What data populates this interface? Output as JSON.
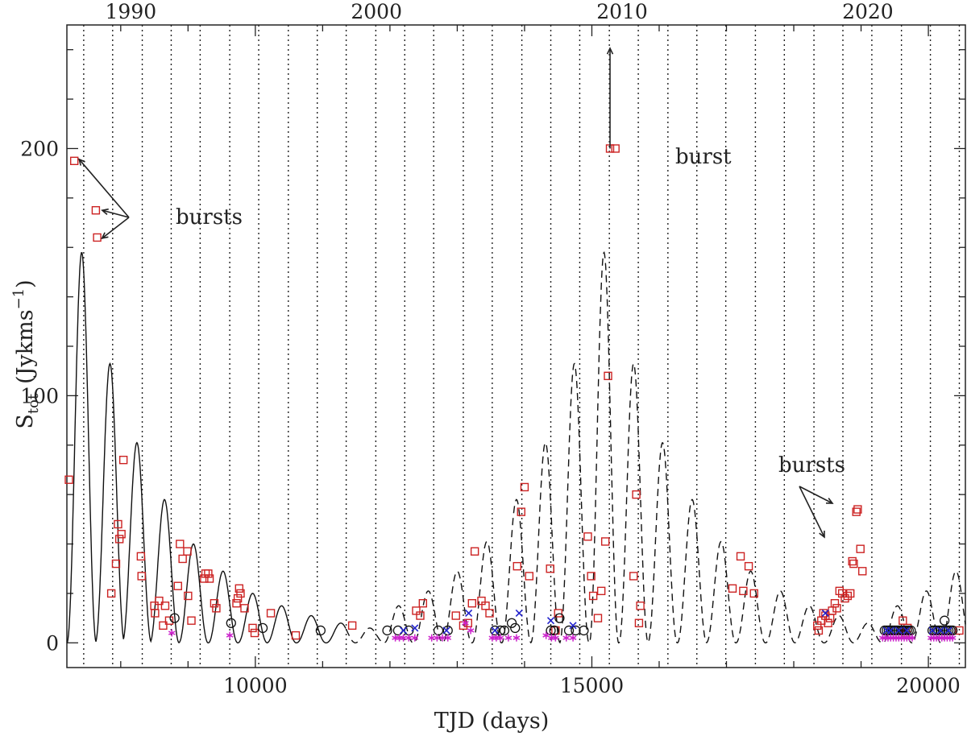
{
  "chart_data": {
    "type": "scatter",
    "title": "",
    "xlabel": "TJD (days)",
    "ylabel": "S",
    "ylabel_sub": "tot",
    "ylabel_units": "(Jykms",
    "ylabel_units_exp": "−1",
    "ylabel_units_close": ")",
    "xlim": [
      7200,
      20550
    ],
    "ylim": [
      -10,
      250
    ],
    "xticks": [
      10000,
      15000,
      20000
    ],
    "yticks": [
      0,
      100,
      200
    ],
    "top_axis_labels": [
      {
        "x": 8150,
        "label": "1990"
      },
      {
        "x": 11800,
        "label": "2000"
      },
      {
        "x": 15450,
        "label": "2010"
      },
      {
        "x": 19100,
        "label": "2020"
      }
    ],
    "vertical_dotted_lines": [
      7450,
      7880,
      8320,
      8750,
      9180,
      9620,
      10050,
      10490,
      10920,
      11350,
      11790,
      12220,
      12650,
      13090,
      13520,
      13960,
      14390,
      14820,
      15260,
      15690,
      16130,
      16560,
      16990,
      17430,
      17860,
      18300,
      18730,
      19160,
      19600,
      20030,
      20460
    ],
    "grid": false,
    "annotations": [
      {
        "text": "bursts"
      },
      {
        "text": "burst"
      },
      {
        "text": "bursts"
      }
    ],
    "series": [
      {
        "marker": "square",
        "color": "#cc2222",
        "points": [
          [
            7230,
            66
          ],
          [
            7310,
            195
          ],
          [
            7630,
            175
          ],
          [
            7650,
            164
          ],
          [
            7860,
            20
          ],
          [
            7930,
            32
          ],
          [
            7960,
            48
          ],
          [
            7980,
            42
          ],
          [
            8010,
            44
          ],
          [
            8040,
            74
          ],
          [
            8300,
            35
          ],
          [
            8310,
            27
          ],
          [
            8500,
            15
          ],
          [
            8510,
            12
          ],
          [
            8570,
            17
          ],
          [
            8630,
            7
          ],
          [
            8660,
            15
          ],
          [
            8720,
            9
          ],
          [
            8850,
            23
          ],
          [
            8880,
            40
          ],
          [
            8920,
            34
          ],
          [
            8990,
            37
          ],
          [
            9000,
            19
          ],
          [
            9050,
            9
          ],
          [
            9240,
            26
          ],
          [
            9260,
            28
          ],
          [
            9300,
            28
          ],
          [
            9320,
            26
          ],
          [
            9390,
            16
          ],
          [
            9420,
            14
          ],
          [
            9720,
            16
          ],
          [
            9740,
            18
          ],
          [
            9760,
            22
          ],
          [
            9780,
            20
          ],
          [
            9840,
            14
          ],
          [
            9960,
            6
          ],
          [
            9990,
            4
          ],
          [
            10230,
            12
          ],
          [
            10600,
            3
          ],
          [
            11440,
            7
          ],
          [
            12390,
            13
          ],
          [
            12450,
            11
          ],
          [
            12490,
            16
          ],
          [
            12980,
            11
          ],
          [
            13090,
            7
          ],
          [
            13160,
            8
          ],
          [
            13220,
            16
          ],
          [
            13260,
            37
          ],
          [
            13360,
            17
          ],
          [
            13420,
            15
          ],
          [
            13480,
            12
          ],
          [
            13890,
            31
          ],
          [
            13950,
            53
          ],
          [
            14000,
            63
          ],
          [
            14070,
            27
          ],
          [
            14380,
            30
          ],
          [
            14460,
            5
          ],
          [
            14500,
            12
          ],
          [
            14940,
            43
          ],
          [
            14990,
            27
          ],
          [
            15020,
            19
          ],
          [
            15090,
            10
          ],
          [
            15140,
            21
          ],
          [
            15200,
            41
          ],
          [
            15240,
            108
          ],
          [
            15270,
            200
          ],
          [
            15350,
            200
          ],
          [
            15620,
            27
          ],
          [
            15660,
            60
          ],
          [
            15700,
            8
          ],
          [
            15720,
            15
          ],
          [
            17090,
            22
          ],
          [
            17210,
            35
          ],
          [
            17250,
            21
          ],
          [
            17330,
            31
          ],
          [
            17410,
            20
          ],
          [
            18350,
            7
          ],
          [
            18370,
            5
          ],
          [
            18410,
            9
          ],
          [
            18440,
            12
          ],
          [
            18470,
            11
          ],
          [
            18510,
            8
          ],
          [
            18540,
            10
          ],
          [
            18570,
            13
          ],
          [
            18610,
            16
          ],
          [
            18640,
            14
          ],
          [
            18680,
            21
          ],
          [
            18720,
            20
          ],
          [
            18760,
            18
          ],
          [
            18800,
            19
          ],
          [
            18840,
            20
          ],
          [
            18870,
            33
          ],
          [
            18890,
            32
          ],
          [
            18930,
            53
          ],
          [
            18950,
            54
          ],
          [
            18990,
            38
          ],
          [
            19020,
            29
          ],
          [
            19620,
            9
          ],
          [
            19660,
            4
          ],
          [
            19690,
            6
          ],
          [
            20460,
            5
          ]
        ]
      },
      {
        "marker": "circle",
        "color": "#111111",
        "points": [
          [
            8800,
            10
          ],
          [
            9640,
            8
          ],
          [
            10110,
            6
          ],
          [
            10970,
            5
          ],
          [
            11960,
            5
          ],
          [
            12120,
            5
          ],
          [
            12280,
            5
          ],
          [
            12720,
            5
          ],
          [
            12860,
            5
          ],
          [
            13560,
            5
          ],
          [
            13640,
            5
          ],
          [
            13700,
            5
          ],
          [
            13810,
            8
          ],
          [
            13860,
            6
          ],
          [
            14390,
            5
          ],
          [
            14440,
            5
          ],
          [
            14520,
            10
          ],
          [
            14660,
            5
          ],
          [
            14760,
            5
          ],
          [
            14880,
            5
          ],
          [
            19350,
            5
          ],
          [
            19380,
            5
          ],
          [
            19410,
            5
          ],
          [
            19440,
            5
          ],
          [
            19470,
            5
          ],
          [
            19500,
            5
          ],
          [
            19530,
            5
          ],
          [
            19560,
            5
          ],
          [
            19590,
            5
          ],
          [
            19620,
            5
          ],
          [
            19650,
            5
          ],
          [
            19680,
            5
          ],
          [
            19710,
            5
          ],
          [
            19740,
            5
          ],
          [
            20060,
            5
          ],
          [
            20090,
            5
          ],
          [
            20120,
            5
          ],
          [
            20150,
            5
          ],
          [
            20180,
            5
          ],
          [
            20210,
            5
          ],
          [
            20240,
            9
          ],
          [
            20270,
            5
          ],
          [
            20300,
            5
          ],
          [
            20330,
            5
          ],
          [
            20360,
            5
          ]
        ]
      },
      {
        "marker": "x",
        "color": "#2222cc",
        "points": [
          [
            12200,
            5
          ],
          [
            12370,
            6
          ],
          [
            12840,
            5
          ],
          [
            13170,
            12
          ],
          [
            13560,
            5
          ],
          [
            13920,
            12
          ],
          [
            14390,
            9
          ],
          [
            14720,
            7
          ],
          [
            18470,
            12
          ],
          [
            19380,
            5
          ],
          [
            19440,
            5
          ],
          [
            19560,
            5
          ],
          [
            19680,
            5
          ],
          [
            20060,
            5
          ],
          [
            20180,
            5
          ],
          [
            20300,
            5
          ]
        ]
      },
      {
        "marker": "star",
        "color": "#cc22cc",
        "points": [
          [
            8760,
            4
          ],
          [
            9620,
            3
          ],
          [
            12080,
            2
          ],
          [
            12140,
            2
          ],
          [
            12200,
            2
          ],
          [
            12280,
            2
          ],
          [
            12370,
            2
          ],
          [
            12620,
            2
          ],
          [
            12700,
            2
          ],
          [
            12780,
            2
          ],
          [
            12860,
            2
          ],
          [
            13120,
            8
          ],
          [
            13200,
            5
          ],
          [
            13520,
            2
          ],
          [
            13580,
            2
          ],
          [
            13640,
            2
          ],
          [
            13760,
            2
          ],
          [
            13880,
            2
          ],
          [
            14320,
            3
          ],
          [
            14400,
            2
          ],
          [
            14460,
            2
          ],
          [
            14620,
            2
          ],
          [
            14720,
            2
          ],
          [
            19320,
            2
          ],
          [
            19360,
            2
          ],
          [
            19400,
            2
          ],
          [
            19440,
            2
          ],
          [
            19480,
            2
          ],
          [
            19520,
            2
          ],
          [
            19560,
            2
          ],
          [
            19600,
            2
          ],
          [
            19640,
            2
          ],
          [
            19680,
            2
          ],
          [
            19720,
            2
          ],
          [
            19760,
            2
          ],
          [
            20040,
            2
          ],
          [
            20080,
            2
          ],
          [
            20120,
            2
          ],
          [
            20160,
            2
          ],
          [
            20200,
            2
          ],
          [
            20240,
            2
          ],
          [
            20280,
            2
          ],
          [
            20320,
            2
          ],
          [
            20360,
            2
          ]
        ]
      }
    ],
    "model_curve": {
      "solid_range": [
        7200,
        11350
      ],
      "dashed_range": [
        11350,
        20550
      ],
      "period_days": 440,
      "peaks": [
        [
          7420,
          158
        ],
        [
          7840,
          113
        ],
        [
          8240,
          81
        ],
        [
          8650,
          58
        ],
        [
          9080,
          40
        ],
        [
          9520,
          29
        ],
        [
          9960,
          20
        ],
        [
          10390,
          15
        ],
        [
          10830,
          11
        ],
        [
          11270,
          8
        ],
        [
          11700,
          6
        ],
        [
          12130,
          15
        ],
        [
          12570,
          21
        ],
        [
          13000,
          29
        ],
        [
          13440,
          41
        ],
        [
          13880,
          58
        ],
        [
          14310,
          81
        ],
        [
          14740,
          113
        ],
        [
          15180,
          158
        ],
        [
          15620,
          113
        ],
        [
          16050,
          81
        ],
        [
          16490,
          58
        ],
        [
          16920,
          41
        ],
        [
          17360,
          29
        ],
        [
          17800,
          21
        ],
        [
          18230,
          15
        ],
        [
          18670,
          11
        ],
        [
          19100,
          8
        ],
        [
          19540,
          15
        ],
        [
          19970,
          21
        ],
        [
          20410,
          29
        ]
      ]
    }
  }
}
